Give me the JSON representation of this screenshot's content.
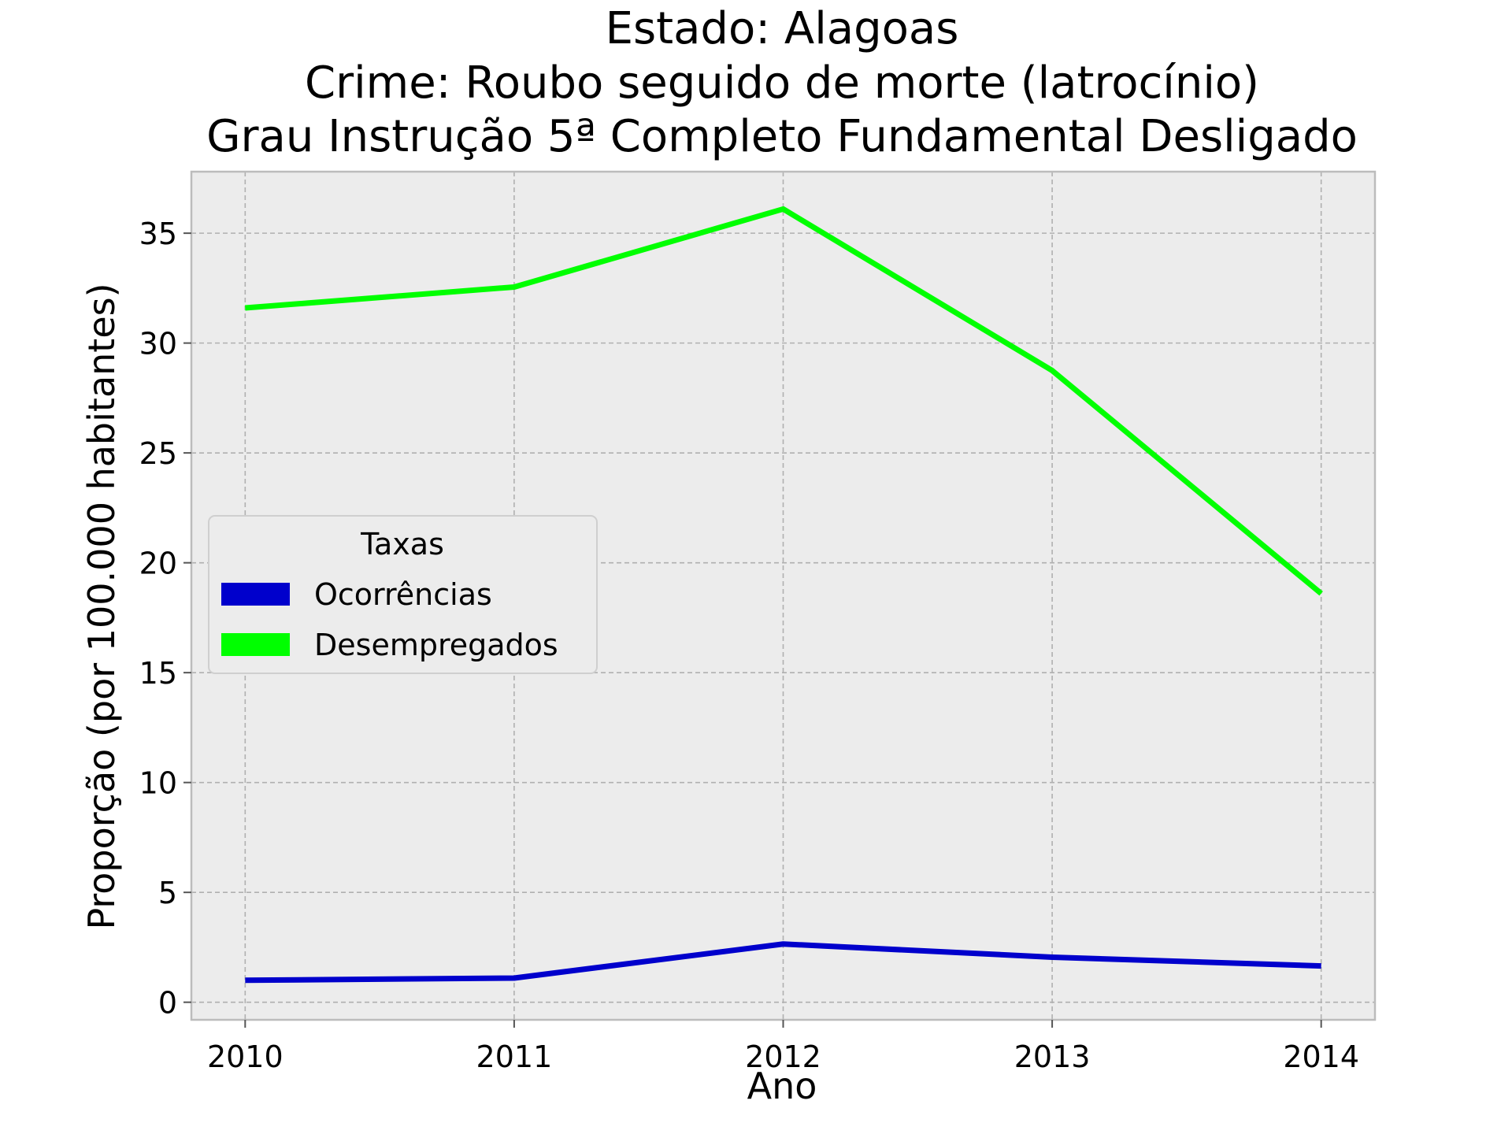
{
  "chart_data": {
    "type": "line",
    "title_lines": [
      "Estado: Alagoas",
      "Crime: Roubo seguido de morte (latrocínio)",
      "Grau Instrução  5ª Completo Fundamental   Desligado"
    ],
    "xlabel": "Ano",
    "ylabel": "Proporção (por 100.000 habitantes)",
    "x": [
      2010,
      2011,
      2012,
      2013,
      2014
    ],
    "x_tick_labels": [
      "2010",
      "2011",
      "2012",
      "2013",
      "2014"
    ],
    "y_ticks": [
      0,
      5,
      10,
      15,
      20,
      25,
      30,
      35
    ],
    "y_tick_labels": [
      "0",
      "5",
      "10",
      "15",
      "20",
      "25",
      "30",
      "35"
    ],
    "xlim": [
      2009.8,
      2014.2
    ],
    "ylim": [
      -0.8,
      37.8
    ],
    "grid": true,
    "legend": {
      "title": "Taxas",
      "placement": "center-left"
    },
    "series": [
      {
        "name": "Ocorrências",
        "color": "#0000cc",
        "values": [
          1.0,
          1.1,
          2.65,
          2.05,
          1.65
        ]
      },
      {
        "name": "Desempregados",
        "color": "#00ff00",
        "values": [
          31.6,
          32.55,
          36.1,
          28.75,
          18.6
        ]
      }
    ],
    "colors": {
      "plot_background": "#ececec",
      "grid": "#b0b0b0",
      "frame": "#bcbcbc"
    }
  }
}
